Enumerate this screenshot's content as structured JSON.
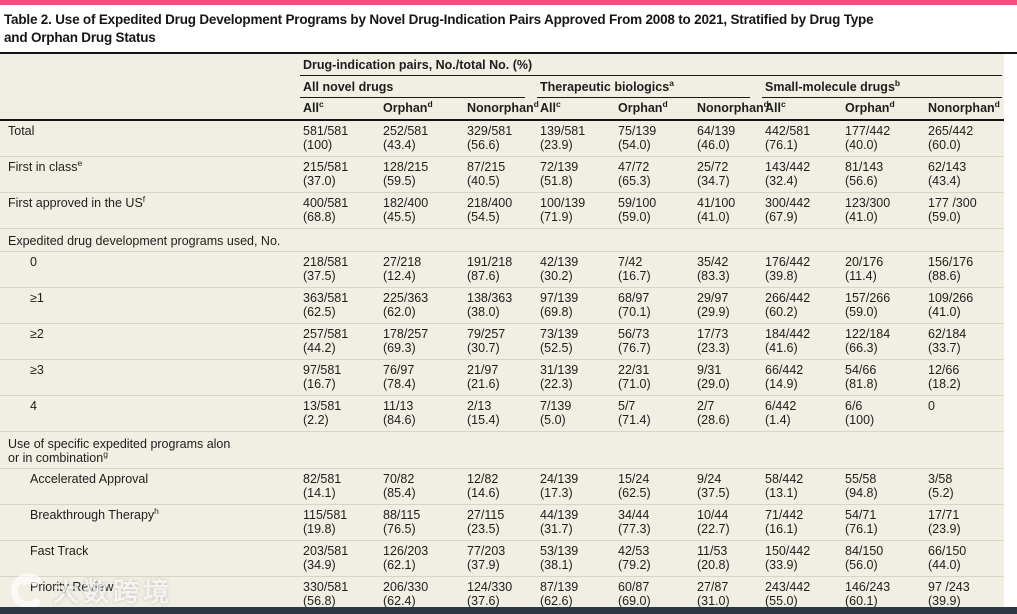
{
  "colors": {
    "accent_pink": "#e8537f",
    "bottom_bar": "#2d3741",
    "table_background": "#f1efe3",
    "rule_black": "#141414",
    "row_separator": "#d8d5c7"
  },
  "title": {
    "text": "Table 2. Use of Expedited Drug Development Programs by Novel Drug-Indication Pairs Approved From 2008 to 2021, Stratified by Drug Type\nand Orphan Drug Status"
  },
  "table": {
    "spanner": "Drug-indication pairs, No./total No. (%)",
    "groups": [
      {
        "label": "All novel drugs",
        "sup": ""
      },
      {
        "label": "Therapeutic biologics",
        "sup": "a"
      },
      {
        "label": "Small-molecule drugs",
        "sup": "b"
      }
    ],
    "columns": [
      {
        "label": "All",
        "sup": "c"
      },
      {
        "label": "Orphan",
        "sup": "d"
      },
      {
        "label": "Nonorphan",
        "sup": "d"
      },
      {
        "label": "All",
        "sup": "c"
      },
      {
        "label": "Orphan",
        "sup": "d"
      },
      {
        "label": "Nonorphan",
        "sup": "d"
      },
      {
        "label": "All",
        "sup": "c"
      },
      {
        "label": "Orphan",
        "sup": "d"
      },
      {
        "label": "Nonorphan",
        "sup": "d"
      }
    ],
    "rows": [
      {
        "type": "data",
        "indent": 0,
        "label": "Total",
        "sup": "",
        "cells": [
          [
            "581/581",
            "(100)"
          ],
          [
            "252/581",
            "(43.4)"
          ],
          [
            "329/581",
            "(56.6)"
          ],
          [
            "139/581",
            "(23.9)"
          ],
          [
            "75/139",
            "(54.0)"
          ],
          [
            "64/139",
            "(46.0)"
          ],
          [
            "442/581",
            "(76.1)"
          ],
          [
            "177/442",
            "(40.0)"
          ],
          [
            "265/442",
            "(60.0)"
          ]
        ]
      },
      {
        "type": "data",
        "indent": 0,
        "label": "First in class",
        "sup": "e",
        "cells": [
          [
            "215/581",
            "(37.0)"
          ],
          [
            "128/215",
            "(59.5)"
          ],
          [
            "87/215",
            "(40.5)"
          ],
          [
            "72/139",
            "(51.8)"
          ],
          [
            "47/72",
            "(65.3)"
          ],
          [
            "25/72",
            "(34.7)"
          ],
          [
            "143/442",
            "(32.4)"
          ],
          [
            "81/143",
            "(56.6)"
          ],
          [
            "62/143",
            "(43.4)"
          ]
        ]
      },
      {
        "type": "data",
        "indent": 0,
        "label": "First approved in the US",
        "sup": "f",
        "cells": [
          [
            "400/581",
            "(68.8)"
          ],
          [
            "182/400",
            "(45.5)"
          ],
          [
            "218/400",
            "(54.5)"
          ],
          [
            "100/139",
            "(71.9)"
          ],
          [
            "59/100",
            "(59.0)"
          ],
          [
            "41/100",
            "(41.0)"
          ],
          [
            "300/442",
            "(67.9)"
          ],
          [
            "123/300",
            "(41.0)"
          ],
          [
            "177 /300",
            "(59.0)"
          ]
        ]
      },
      {
        "type": "section",
        "indent": 0,
        "label": "Expedited drug development programs used, No.",
        "sup": ""
      },
      {
        "type": "data",
        "indent": 1,
        "label": "0",
        "sup": "",
        "cells": [
          [
            "218/581",
            "(37.5)"
          ],
          [
            "27/218",
            "(12.4)"
          ],
          [
            "191/218",
            "(87.6)"
          ],
          [
            "42/139",
            "(30.2)"
          ],
          [
            "7/42",
            "(16.7)"
          ],
          [
            "35/42",
            "(83.3)"
          ],
          [
            "176/442",
            "(39.8)"
          ],
          [
            "20/176",
            "(11.4)"
          ],
          [
            "156/176",
            "(88.6)"
          ]
        ]
      },
      {
        "type": "data",
        "indent": 1,
        "label": "≥1",
        "sup": "",
        "cells": [
          [
            "363/581",
            "(62.5)"
          ],
          [
            "225/363",
            "(62.0)"
          ],
          [
            "138/363",
            "(38.0)"
          ],
          [
            "97/139",
            "(69.8)"
          ],
          [
            "68/97",
            "(70.1)"
          ],
          [
            "29/97",
            "(29.9)"
          ],
          [
            "266/442",
            "(60.2)"
          ],
          [
            "157/266",
            "(59.0)"
          ],
          [
            "109/266",
            "(41.0)"
          ]
        ]
      },
      {
        "type": "data",
        "indent": 1,
        "label": "≥2",
        "sup": "",
        "cells": [
          [
            "257/581",
            "(44.2)"
          ],
          [
            "178/257",
            "(69.3)"
          ],
          [
            "79/257",
            "(30.7)"
          ],
          [
            "73/139",
            "(52.5)"
          ],
          [
            "56/73",
            "(76.7)"
          ],
          [
            "17/73",
            "(23.3)"
          ],
          [
            "184/442",
            "(41.6)"
          ],
          [
            "122/184",
            "(66.3)"
          ],
          [
            "62/184",
            "(33.7)"
          ]
        ]
      },
      {
        "type": "data",
        "indent": 1,
        "label": "≥3",
        "sup": "",
        "cells": [
          [
            "97/581",
            "(16.7)"
          ],
          [
            "76/97",
            "(78.4)"
          ],
          [
            "21/97",
            "(21.6)"
          ],
          [
            "31/139",
            "(22.3)"
          ],
          [
            "22/31",
            "(71.0)"
          ],
          [
            "9/31",
            "(29.0)"
          ],
          [
            "66/442",
            "(14.9)"
          ],
          [
            "54/66",
            "(81.8)"
          ],
          [
            "12/66",
            "(18.2)"
          ]
        ]
      },
      {
        "type": "data",
        "indent": 1,
        "label": "4",
        "sup": "",
        "cells": [
          [
            "13/581",
            "(2.2)"
          ],
          [
            "11/13",
            "(84.6)"
          ],
          [
            "2/13",
            "(15.4)"
          ],
          [
            "7/139",
            "(5.0)"
          ],
          [
            "5/7",
            "(71.4)"
          ],
          [
            "2/7",
            "(28.6)"
          ],
          [
            "6/442",
            "(1.4)"
          ],
          [
            "6/6",
            "(100)"
          ],
          [
            "0",
            ""
          ]
        ]
      },
      {
        "type": "section",
        "indent": 0,
        "label": "Use of specific expedited programs alon\nor in combination",
        "sup": "g"
      },
      {
        "type": "data",
        "indent": 1,
        "label": "Accelerated Approval",
        "sup": "",
        "cells": [
          [
            "82/581",
            "(14.1)"
          ],
          [
            "70/82",
            "(85.4)"
          ],
          [
            "12/82",
            "(14.6)"
          ],
          [
            "24/139",
            "(17.3)"
          ],
          [
            "15/24",
            "(62.5)"
          ],
          [
            "9/24",
            "(37.5)"
          ],
          [
            "58/442",
            "(13.1)"
          ],
          [
            "55/58",
            "(94.8)"
          ],
          [
            "3/58",
            "(5.2)"
          ]
        ]
      },
      {
        "type": "data",
        "indent": 1,
        "label": "Breakthrough Therapy",
        "sup": "h",
        "cells": [
          [
            "115/581",
            "(19.8)"
          ],
          [
            "88/115",
            "(76.5)"
          ],
          [
            "27/115",
            "(23.5)"
          ],
          [
            "44/139",
            "(31.7)"
          ],
          [
            "34/44",
            "(77.3)"
          ],
          [
            "10/44",
            "(22.7)"
          ],
          [
            "71/442",
            "(16.1)"
          ],
          [
            "54/71",
            "(76.1)"
          ],
          [
            "17/71",
            "(23.9)"
          ]
        ]
      },
      {
        "type": "data",
        "indent": 1,
        "label": "Fast Track",
        "sup": "",
        "cells": [
          [
            "203/581",
            "(34.9)"
          ],
          [
            "126/203",
            "(62.1)"
          ],
          [
            "77/203",
            "(37.9)"
          ],
          [
            "53/139",
            "(38.1)"
          ],
          [
            "42/53",
            "(79.2)"
          ],
          [
            "11/53",
            "(20.8)"
          ],
          [
            "150/442",
            "(33.9)"
          ],
          [
            "84/150",
            "(56.0)"
          ],
          [
            "66/150",
            "(44.0)"
          ]
        ]
      },
      {
        "type": "data",
        "indent": 1,
        "label": "Priority Review",
        "sup": "",
        "cells": [
          [
            "330/581",
            "(56.8)"
          ],
          [
            "206/330",
            "(62.4)"
          ],
          [
            "124/330",
            "(37.6)"
          ],
          [
            "87/139",
            "(62.6)"
          ],
          [
            "60/87",
            "(69.0)"
          ],
          [
            "27/87",
            "(31.0)"
          ],
          [
            "243/442",
            "(55.0)"
          ],
          [
            "146/243",
            "(60.1)"
          ],
          [
            "97 /243",
            "(39.9)"
          ]
        ]
      }
    ]
  },
  "watermark": {
    "logo": "swirl-logo",
    "text": "大数跨境"
  }
}
